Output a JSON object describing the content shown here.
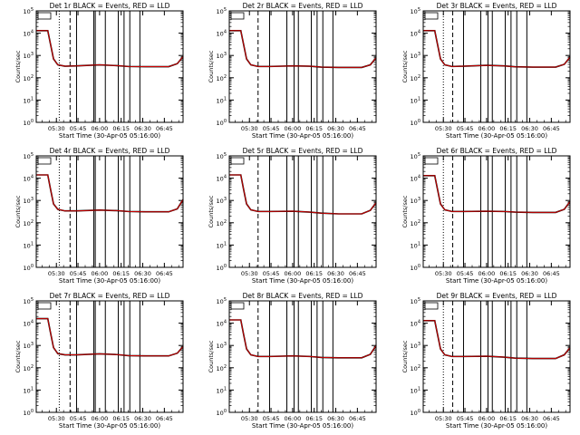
{
  "chart_data": [
    {
      "type": "line",
      "title": "Det 1r BLACK = Events, RED = LLD",
      "xlabel": "Start Time (30-Apr-05 05:16:00)",
      "ylabel": "Counts/sec",
      "ylog": true,
      "ylim": [
        1,
        100000
      ],
      "xlim_min": [
        16,
        118
      ],
      "x_ticks": [
        "05:30",
        "05:45",
        "06:00",
        "06:15",
        "06:30",
        "06:45"
      ],
      "x_tick_min": [
        30,
        45,
        60,
        75,
        90,
        105
      ],
      "y_ticks": [
        "10^0",
        "10^1",
        "10^2",
        "10^3",
        "10^4",
        "10^5"
      ],
      "legend_box": "top-left",
      "vlines_dotted_min": [
        32
      ],
      "vlines_dashed_min": [
        39.5
      ],
      "vlines_solid_min": [
        44,
        56,
        57,
        64,
        73,
        77,
        81,
        88
      ],
      "series": [
        {
          "color": "#000000",
          "x": [
            16,
            24,
            26,
            28,
            31,
            36,
            44,
            60,
            72,
            80,
            92,
            108,
            114,
            118
          ],
          "y": [
            13000,
            13000,
            3000,
            700,
            380,
            330,
            340,
            380,
            350,
            320,
            315,
            315,
            430,
            900
          ]
        },
        {
          "color": "#cc0000",
          "x": [
            16,
            24,
            26,
            28,
            31,
            36,
            44,
            60,
            72,
            80,
            92,
            108,
            114,
            118
          ],
          "y": [
            13000,
            13000,
            3000,
            700,
            380,
            330,
            340,
            380,
            350,
            320,
            315,
            315,
            430,
            900
          ]
        }
      ]
    },
    {
      "type": "line",
      "title": "Det 2r BLACK = Events, RED = LLD",
      "xlabel": "Start Time (30-Apr-05 05:16:00)",
      "ylabel": "Counts/sec",
      "ylog": true,
      "ylim": [
        1,
        100000
      ],
      "xlim_min": [
        16,
        118
      ],
      "x_ticks": [
        "05:30",
        "05:45",
        "06:00",
        "06:15",
        "06:30",
        "06:45"
      ],
      "x_tick_min": [
        30,
        45,
        60,
        75,
        90,
        105
      ],
      "y_ticks": [
        "10^0",
        "10^1",
        "10^2",
        "10^3",
        "10^4",
        "10^5"
      ],
      "legend_box": "top-left",
      "vlines_dotted_min": [],
      "vlines_dashed_min": [
        36
      ],
      "vlines_solid_min": [
        44,
        56,
        61,
        64,
        73,
        77,
        81,
        88
      ],
      "series": [
        {
          "color": "#000000",
          "x": [
            16,
            24,
            26,
            28,
            31,
            36,
            44,
            60,
            72,
            80,
            92,
            108,
            114,
            118
          ],
          "y": [
            13000,
            13000,
            3000,
            700,
            380,
            320,
            320,
            340,
            330,
            300,
            290,
            290,
            380,
            800
          ]
        },
        {
          "color": "#cc0000",
          "x": [
            16,
            24,
            26,
            28,
            31,
            36,
            44,
            60,
            72,
            80,
            92,
            108,
            114,
            118
          ],
          "y": [
            13000,
            13000,
            3000,
            700,
            380,
            320,
            320,
            340,
            330,
            300,
            290,
            290,
            380,
            800
          ]
        }
      ]
    },
    {
      "type": "line",
      "title": "Det 3r BLACK = Events, RED = LLD",
      "xlabel": "Start Time (30-Apr-05 05:16:00)",
      "ylabel": "Counts/sec",
      "ylog": true,
      "ylim": [
        1,
        100000
      ],
      "xlim_min": [
        16,
        118
      ],
      "x_ticks": [
        "05:30",
        "05:45",
        "06:00",
        "06:15",
        "06:30",
        "06:45"
      ],
      "x_tick_min": [
        30,
        45,
        60,
        75,
        90,
        105
      ],
      "y_ticks": [
        "10^0",
        "10^1",
        "10^2",
        "10^3",
        "10^4",
        "10^5"
      ],
      "legend_box": "top-left",
      "vlines_dotted_min": [
        30
      ],
      "vlines_dashed_min": [
        36.5
      ],
      "vlines_solid_min": [
        44,
        56,
        61,
        64,
        73,
        77,
        81,
        88
      ],
      "series": [
        {
          "color": "#000000",
          "x": [
            16,
            24,
            26,
            28,
            31,
            36,
            44,
            60,
            72,
            80,
            92,
            108,
            114,
            118
          ],
          "y": [
            13000,
            13000,
            3000,
            700,
            380,
            320,
            330,
            360,
            340,
            310,
            300,
            300,
            400,
            850
          ]
        },
        {
          "color": "#cc0000",
          "x": [
            16,
            24,
            26,
            28,
            31,
            36,
            44,
            60,
            72,
            80,
            92,
            108,
            114,
            118
          ],
          "y": [
            13000,
            13000,
            3000,
            700,
            380,
            320,
            330,
            360,
            340,
            310,
            300,
            300,
            400,
            850
          ]
        }
      ]
    },
    {
      "type": "line",
      "title": "Det 4r BLACK = Events, RED = LLD",
      "xlabel": "Start Time (30-Apr-05 05:16:00)",
      "ylabel": "Counts/sec",
      "ylog": true,
      "ylim": [
        1,
        100000
      ],
      "xlim_min": [
        16,
        118
      ],
      "x_ticks": [
        "05:30",
        "05:45",
        "06:00",
        "06:15",
        "06:30",
        "06:45"
      ],
      "x_tick_min": [
        30,
        45,
        60,
        75,
        90,
        105
      ],
      "y_ticks": [
        "10^0",
        "10^1",
        "10^2",
        "10^3",
        "10^4",
        "10^5"
      ],
      "legend_box": "top-left",
      "vlines_dotted_min": [
        32
      ],
      "vlines_dashed_min": [
        39.5
      ],
      "vlines_solid_min": [
        44,
        56,
        57,
        64,
        73,
        77,
        81,
        88
      ],
      "series": [
        {
          "color": "#000000",
          "x": [
            16,
            24,
            26,
            28,
            31,
            36,
            44,
            60,
            72,
            80,
            92,
            108,
            114,
            118
          ],
          "y": [
            14000,
            14000,
            3000,
            700,
            400,
            340,
            340,
            370,
            350,
            320,
            310,
            310,
            420,
            1100
          ]
        },
        {
          "color": "#cc0000",
          "x": [
            16,
            24,
            26,
            28,
            31,
            36,
            44,
            60,
            72,
            80,
            92,
            108,
            114,
            118
          ],
          "y": [
            14000,
            14000,
            3000,
            700,
            400,
            340,
            340,
            370,
            350,
            320,
            310,
            310,
            420,
            1100
          ]
        }
      ]
    },
    {
      "type": "line",
      "title": "Det 5r BLACK = Events, RED = LLD",
      "xlabel": "Start Time (30-Apr-05 05:16:00)",
      "ylabel": "Counts/sec",
      "ylog": true,
      "ylim": [
        1,
        100000
      ],
      "xlim_min": [
        16,
        118
      ],
      "x_ticks": [
        "05:30",
        "05:45",
        "06:00",
        "06:15",
        "06:30",
        "06:45"
      ],
      "x_tick_min": [
        30,
        45,
        60,
        75,
        90,
        105
      ],
      "y_ticks": [
        "10^0",
        "10^1",
        "10^2",
        "10^3",
        "10^4",
        "10^5"
      ],
      "legend_box": "top-left",
      "vlines_dotted_min": [],
      "vlines_dashed_min": [
        36
      ],
      "vlines_solid_min": [
        44,
        56,
        61,
        64,
        73,
        77,
        81,
        88
      ],
      "series": [
        {
          "color": "#000000",
          "x": [
            16,
            24,
            26,
            28,
            31,
            36,
            44,
            60,
            72,
            80,
            92,
            108,
            114,
            118
          ],
          "y": [
            14000,
            14000,
            3000,
            700,
            380,
            320,
            320,
            330,
            300,
            270,
            250,
            250,
            360,
            800
          ]
        },
        {
          "color": "#cc0000",
          "x": [
            16,
            24,
            26,
            28,
            31,
            36,
            44,
            60,
            72,
            80,
            92,
            108,
            114,
            118
          ],
          "y": [
            14000,
            14000,
            3000,
            700,
            380,
            320,
            320,
            330,
            300,
            270,
            250,
            250,
            360,
            800
          ]
        }
      ]
    },
    {
      "type": "line",
      "title": "Det 6r BLACK = Events, RED = LLD",
      "xlabel": "Start Time (30-Apr-05 05:16:00)",
      "ylabel": "Counts/sec",
      "ylog": true,
      "ylim": [
        1,
        100000
      ],
      "xlim_min": [
        16,
        118
      ],
      "x_ticks": [
        "05:30",
        "05:45",
        "06:00",
        "06:15",
        "06:30",
        "06:45"
      ],
      "x_tick_min": [
        30,
        45,
        60,
        75,
        90,
        105
      ],
      "y_ticks": [
        "10^0",
        "10^1",
        "10^2",
        "10^3",
        "10^4",
        "10^5"
      ],
      "legend_box": "top-left",
      "vlines_dotted_min": [
        30
      ],
      "vlines_dashed_min": [
        36.5
      ],
      "vlines_solid_min": [
        44,
        56,
        61,
        64,
        73,
        77,
        81,
        88
      ],
      "series": [
        {
          "color": "#000000",
          "x": [
            16,
            24,
            26,
            28,
            31,
            36,
            44,
            60,
            72,
            80,
            92,
            108,
            114,
            118
          ],
          "y": [
            13000,
            13000,
            3000,
            700,
            380,
            320,
            320,
            330,
            320,
            300,
            290,
            290,
            400,
            900
          ]
        },
        {
          "color": "#cc0000",
          "x": [
            16,
            24,
            26,
            28,
            31,
            36,
            44,
            60,
            72,
            80,
            92,
            108,
            114,
            118
          ],
          "y": [
            13000,
            13000,
            3000,
            700,
            380,
            320,
            320,
            330,
            320,
            300,
            290,
            290,
            400,
            900
          ]
        }
      ]
    },
    {
      "type": "line",
      "title": "Det 7r BLACK = Events, RED = LLD",
      "xlabel": "Start Time (30-Apr-05 05:16:00)",
      "ylabel": "Counts/sec",
      "ylog": true,
      "ylim": [
        1,
        100000
      ],
      "xlim_min": [
        16,
        118
      ],
      "x_ticks": [
        "05:30",
        "05:45",
        "06:00",
        "06:15",
        "06:30",
        "06:45"
      ],
      "x_tick_min": [
        30,
        45,
        60,
        75,
        90,
        105
      ],
      "y_ticks": [
        "10^0",
        "10^1",
        "10^2",
        "10^3",
        "10^4",
        "10^5"
      ],
      "legend_box": "top-left",
      "vlines_dotted_min": [
        32
      ],
      "vlines_dashed_min": [
        39.5
      ],
      "vlines_solid_min": [
        44,
        56,
        57,
        64,
        73,
        77,
        81,
        88
      ],
      "series": [
        {
          "color": "#000000",
          "x": [
            16,
            24,
            26,
            28,
            31,
            36,
            44,
            60,
            72,
            80,
            92,
            108,
            114,
            118
          ],
          "y": [
            16000,
            16000,
            3500,
            800,
            430,
            380,
            380,
            420,
            390,
            350,
            340,
            340,
            450,
            900
          ]
        },
        {
          "color": "#cc0000",
          "x": [
            16,
            24,
            26,
            28,
            31,
            36,
            44,
            60,
            72,
            80,
            92,
            108,
            114,
            118
          ],
          "y": [
            16000,
            16000,
            3500,
            800,
            430,
            380,
            380,
            420,
            390,
            350,
            340,
            340,
            450,
            900
          ]
        }
      ]
    },
    {
      "type": "line",
      "title": "Det 8r BLACK = Events, RED = LLD",
      "xlabel": "Start Time (30-Apr-05 05:16:00)",
      "ylabel": "Counts/sec",
      "ylog": true,
      "ylim": [
        1,
        100000
      ],
      "xlim_min": [
        16,
        118
      ],
      "x_ticks": [
        "05:30",
        "05:45",
        "06:00",
        "06:15",
        "06:30",
        "06:45"
      ],
      "x_tick_min": [
        30,
        45,
        60,
        75,
        90,
        105
      ],
      "y_ticks": [
        "10^0",
        "10^1",
        "10^2",
        "10^3",
        "10^4",
        "10^5"
      ],
      "legend_box": "top-left",
      "vlines_dotted_min": [],
      "vlines_dashed_min": [
        36
      ],
      "vlines_solid_min": [
        44,
        56,
        61,
        64,
        73,
        77,
        81,
        88
      ],
      "series": [
        {
          "color": "#000000",
          "x": [
            16,
            24,
            26,
            28,
            31,
            36,
            44,
            60,
            72,
            80,
            92,
            108,
            114,
            118
          ],
          "y": [
            14000,
            14000,
            3000,
            700,
            380,
            320,
            320,
            340,
            320,
            290,
            280,
            280,
            400,
            1000
          ]
        },
        {
          "color": "#cc0000",
          "x": [
            16,
            24,
            26,
            28,
            31,
            36,
            44,
            60,
            72,
            80,
            92,
            108,
            114,
            118
          ],
          "y": [
            14000,
            14000,
            3000,
            700,
            380,
            320,
            320,
            340,
            320,
            290,
            280,
            280,
            400,
            1000
          ]
        }
      ]
    },
    {
      "type": "line",
      "title": "Det 9r BLACK = Events, RED = LLD",
      "xlabel": "Start Time (30-Apr-05 05:16:00)",
      "ylabel": "Counts/sec",
      "ylog": true,
      "ylim": [
        1,
        100000
      ],
      "xlim_min": [
        16,
        118
      ],
      "x_ticks": [
        "05:30",
        "05:45",
        "06:00",
        "06:15",
        "06:30",
        "06:45"
      ],
      "x_tick_min": [
        30,
        45,
        60,
        75,
        90,
        105
      ],
      "y_ticks": [
        "10^0",
        "10^1",
        "10^2",
        "10^3",
        "10^4",
        "10^5"
      ],
      "legend_box": "top-left",
      "vlines_dotted_min": [
        30
      ],
      "vlines_dashed_min": [
        36.5
      ],
      "vlines_solid_min": [
        44,
        56,
        61,
        64,
        73,
        77,
        81,
        88
      ],
      "series": [
        {
          "color": "#000000",
          "x": [
            16,
            24,
            26,
            28,
            31,
            36,
            44,
            60,
            72,
            80,
            92,
            108,
            114,
            118
          ],
          "y": [
            13000,
            13000,
            3000,
            700,
            380,
            320,
            320,
            330,
            300,
            270,
            260,
            260,
            380,
            800
          ]
        },
        {
          "color": "#cc0000",
          "x": [
            16,
            24,
            26,
            28,
            31,
            36,
            44,
            60,
            72,
            80,
            92,
            108,
            114,
            118
          ],
          "y": [
            13000,
            13000,
            3000,
            700,
            380,
            320,
            320,
            330,
            300,
            270,
            260,
            260,
            380,
            800
          ]
        }
      ]
    }
  ]
}
